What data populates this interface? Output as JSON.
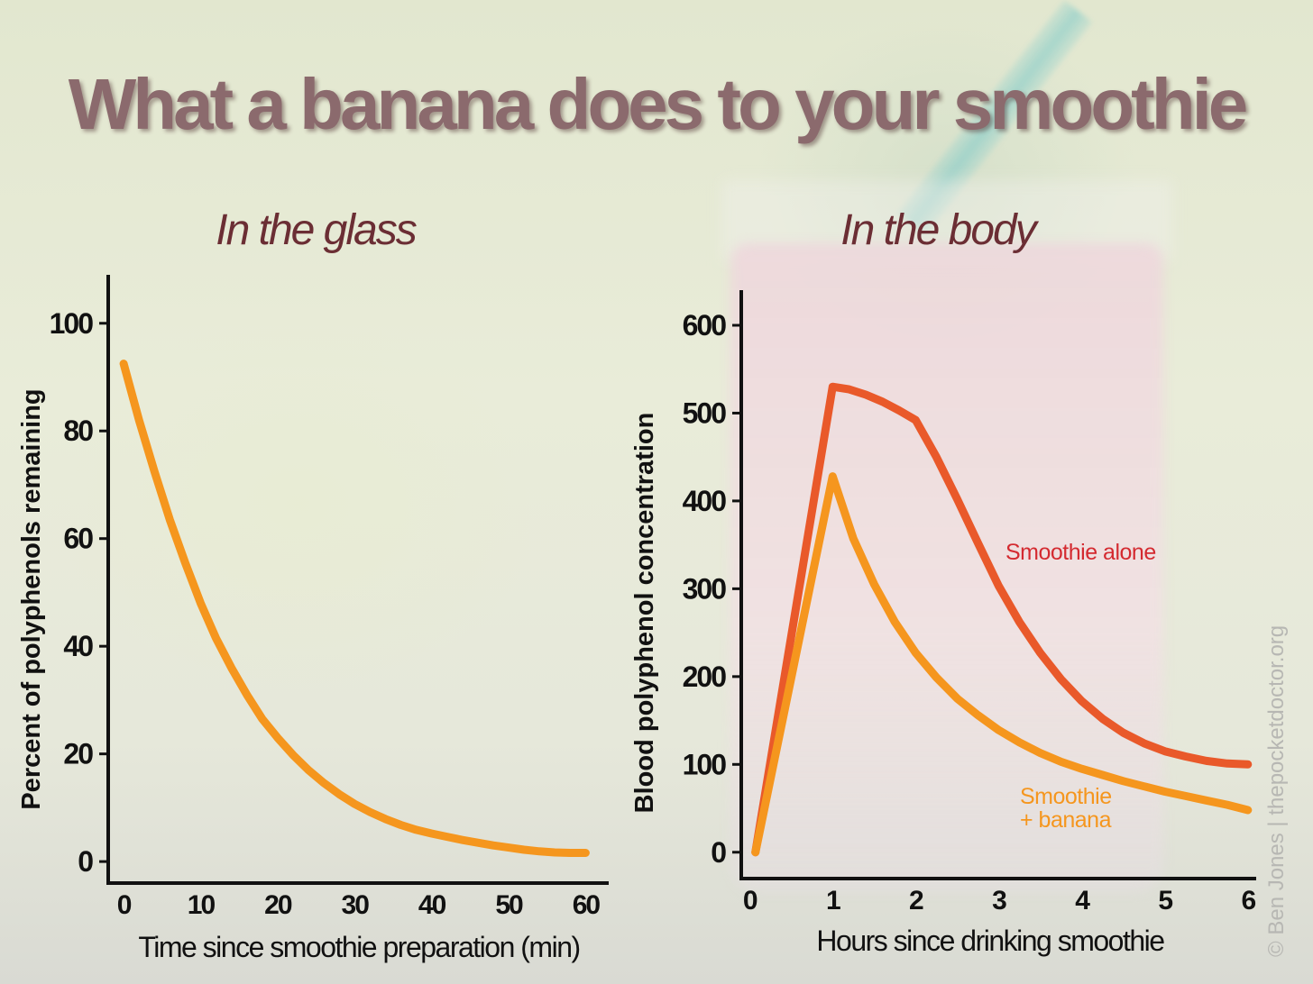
{
  "title": "What a banana does to your smoothie",
  "credit": "© Ben Jones | thepocketdoctor.org",
  "colors": {
    "orange": "#f5961e",
    "red": "#e9592a",
    "red_label": "#d42a30",
    "axis": "#111111"
  },
  "chart_data": [
    {
      "type": "line",
      "title": "In the glass",
      "xlabel": "Time since smoothie preparation (min)",
      "ylabel": "Percent of polyphenols remaining",
      "xlim": [
        -2,
        63
      ],
      "ylim": [
        -4,
        109
      ],
      "xticks": [
        0,
        10,
        20,
        30,
        40,
        50,
        60
      ],
      "yticks": [
        0,
        20,
        40,
        60,
        80,
        100
      ],
      "grid": false,
      "series": [
        {
          "color": "#f5961e",
          "x": [
            0,
            2,
            4,
            6,
            8,
            10,
            12,
            14,
            16,
            18,
            20,
            22,
            24,
            26,
            28,
            30,
            32,
            34,
            36,
            38,
            40,
            42,
            44,
            46,
            48,
            50,
            52,
            54,
            56,
            58,
            60
          ],
          "y": [
            92.5,
            82,
            72.5,
            63.5,
            55.5,
            48,
            41.5,
            36,
            31,
            26.5,
            23,
            19.8,
            17,
            14.6,
            12.5,
            10.7,
            9.2,
            7.9,
            6.8,
            5.9,
            5.2,
            4.6,
            4.0,
            3.5,
            3.0,
            2.6,
            2.2,
            1.9,
            1.7,
            1.6,
            1.6
          ]
        }
      ]
    },
    {
      "type": "line",
      "title": "In the body",
      "xlabel": "Hours since drinking smoothie",
      "ylabel": "Blood polyphenol concentration",
      "xlim": [
        -0.1,
        6.1
      ],
      "ylim": [
        -30,
        640
      ],
      "xticks": [
        0,
        1,
        2,
        3,
        4,
        5,
        6
      ],
      "yticks": [
        0,
        100,
        200,
        300,
        400,
        500,
        600
      ],
      "grid": false,
      "series": [
        {
          "name": "Smoothie alone",
          "color": "#e9592a",
          "label_color": "#d42a30",
          "x": [
            0.07,
            1.0,
            1.2,
            1.4,
            1.6,
            1.8,
            2.0,
            2.25,
            2.5,
            2.75,
            3.0,
            3.25,
            3.5,
            3.75,
            4.0,
            4.25,
            4.5,
            4.75,
            5.0,
            5.25,
            5.5,
            5.75,
            6.0
          ],
          "y": [
            0,
            530,
            527,
            521,
            513,
            503,
            492,
            450,
            402,
            352,
            303,
            262,
            227,
            197,
            172,
            152,
            136,
            124,
            115,
            109,
            104,
            101,
            100
          ]
        },
        {
          "name": "Smoothie + banana",
          "name_lines": [
            "Smoothie",
            "+ banana"
          ],
          "color": "#f5961e",
          "label_color": "#f5961e",
          "x": [
            0.07,
            1.0,
            1.25,
            1.5,
            1.75,
            2.0,
            2.25,
            2.5,
            2.75,
            3.0,
            3.25,
            3.5,
            3.75,
            4.0,
            4.25,
            4.5,
            4.75,
            5.0,
            5.25,
            5.5,
            5.75,
            6.0
          ],
          "y": [
            0,
            428,
            357,
            305,
            262,
            227,
            199,
            175,
            156,
            139,
            125,
            113,
            103,
            95,
            88,
            81,
            75,
            69,
            64,
            59,
            54,
            48
          ]
        }
      ]
    }
  ]
}
